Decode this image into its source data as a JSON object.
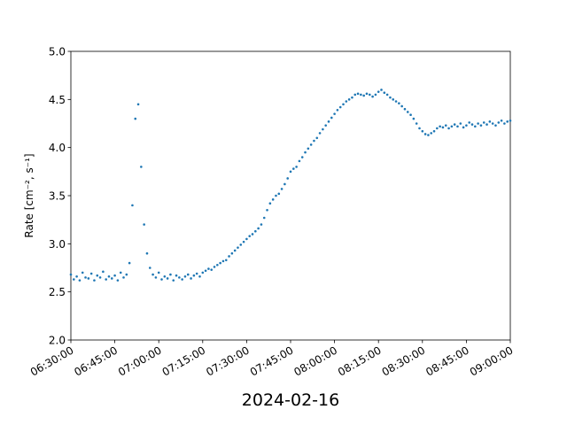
{
  "chart_data": {
    "type": "scatter",
    "x_label": "2024-02-16",
    "y_label": "Rate [cm⁻², s⁻¹]",
    "color": "#1f77b4",
    "xlim": [
      "06:30:00",
      "09:00:00"
    ],
    "xticks": [
      "06:30:00",
      "06:45:00",
      "07:00:00",
      "07:15:00",
      "07:30:00",
      "07:45:00",
      "08:00:00",
      "08:15:00",
      "08:30:00",
      "08:45:00",
      "09:00:00"
    ],
    "ylim": [
      2,
      5
    ],
    "yticks": [
      {
        "value": 2,
        "label": "2.0"
      },
      2.5,
      {
        "value": 3,
        "label": "3.0"
      },
      3.5,
      {
        "value": 4,
        "label": "4.0"
      },
      4.5,
      {
        "value": 5,
        "label": "5.0"
      }
    ],
    "x": [
      "06:30:00",
      "06:31:00",
      "06:32:00",
      "06:33:00",
      "06:34:00",
      "06:35:00",
      "06:36:00",
      "06:37:00",
      "06:38:00",
      "06:39:00",
      "06:40:00",
      "06:41:00",
      "06:42:00",
      "06:43:00",
      "06:44:00",
      "06:45:00",
      "06:46:00",
      "06:47:00",
      "06:48:00",
      "06:49:00",
      "06:50:00",
      "06:51:00",
      "06:52:00",
      "06:53:00",
      "06:54:00",
      "06:55:00",
      "06:56:00",
      "06:57:00",
      "06:58:00",
      "06:59:00",
      "07:00:00",
      "07:01:00",
      "07:02:00",
      "07:03:00",
      "07:04:00",
      "07:05:00",
      "07:06:00",
      "07:07:00",
      "07:08:00",
      "07:09:00",
      "07:10:00",
      "07:11:00",
      "07:12:00",
      "07:13:00",
      "07:14:00",
      "07:15:00",
      "07:16:00",
      "07:17:00",
      "07:18:00",
      "07:19:00",
      "07:20:00",
      "07:21:00",
      "07:22:00",
      "07:23:00",
      "07:24:00",
      "07:25:00",
      "07:26:00",
      "07:27:00",
      "07:28:00",
      "07:29:00",
      "07:30:00",
      "07:31:00",
      "07:32:00",
      "07:33:00",
      "07:34:00",
      "07:35:00",
      "07:36:00",
      "07:37:00",
      "07:38:00",
      "07:39:00",
      "07:40:00",
      "07:41:00",
      "07:42:00",
      "07:43:00",
      "07:44:00",
      "07:45:00",
      "07:46:00",
      "07:47:00",
      "07:48:00",
      "07:49:00",
      "07:50:00",
      "07:51:00",
      "07:52:00",
      "07:53:00",
      "07:54:00",
      "07:55:00",
      "07:56:00",
      "07:57:00",
      "07:58:00",
      "07:59:00",
      "08:00:00",
      "08:01:00",
      "08:02:00",
      "08:03:00",
      "08:04:00",
      "08:05:00",
      "08:06:00",
      "08:07:00",
      "08:08:00",
      "08:09:00",
      "08:10:00",
      "08:11:00",
      "08:12:00",
      "08:13:00",
      "08:14:00",
      "08:15:00",
      "08:16:00",
      "08:17:00",
      "08:18:00",
      "08:19:00",
      "08:20:00",
      "08:21:00",
      "08:22:00",
      "08:23:00",
      "08:24:00",
      "08:25:00",
      "08:26:00",
      "08:27:00",
      "08:28:00",
      "08:29:00",
      "08:30:00",
      "08:31:00",
      "08:32:00",
      "08:33:00",
      "08:34:00",
      "08:35:00",
      "08:36:00",
      "08:37:00",
      "08:38:00",
      "08:39:00",
      "08:40:00",
      "08:41:00",
      "08:42:00",
      "08:43:00",
      "08:44:00",
      "08:45:00",
      "08:46:00",
      "08:47:00",
      "08:48:00",
      "08:49:00",
      "08:50:00",
      "08:51:00",
      "08:52:00",
      "08:53:00",
      "08:54:00",
      "08:55:00",
      "08:56:00",
      "08:57:00",
      "08:58:00",
      "08:59:00",
      "09:00:00"
    ],
    "values": [
      2.68,
      2.63,
      2.66,
      2.62,
      2.7,
      2.65,
      2.64,
      2.69,
      2.62,
      2.67,
      2.65,
      2.71,
      2.63,
      2.66,
      2.64,
      2.67,
      2.62,
      2.7,
      2.65,
      2.68,
      2.8,
      3.4,
      4.3,
      4.45,
      3.8,
      3.2,
      2.9,
      2.75,
      2.68,
      2.65,
      2.7,
      2.63,
      2.66,
      2.64,
      2.68,
      2.62,
      2.67,
      2.65,
      2.63,
      2.66,
      2.68,
      2.64,
      2.67,
      2.69,
      2.66,
      2.7,
      2.72,
      2.74,
      2.73,
      2.76,
      2.78,
      2.8,
      2.82,
      2.83,
      2.87,
      2.9,
      2.93,
      2.96,
      2.99,
      3.02,
      3.05,
      3.08,
      3.1,
      3.13,
      3.16,
      3.2,
      3.27,
      3.35,
      3.42,
      3.46,
      3.5,
      3.52,
      3.57,
      3.62,
      3.68,
      3.75,
      3.78,
      3.8,
      3.86,
      3.9,
      3.95,
      3.99,
      4.03,
      4.07,
      4.1,
      4.15,
      4.19,
      4.23,
      4.27,
      4.31,
      4.35,
      4.39,
      4.42,
      4.45,
      4.48,
      4.5,
      4.52,
      4.55,
      4.56,
      4.55,
      4.54,
      4.56,
      4.55,
      4.53,
      4.55,
      4.58,
      4.6,
      4.57,
      4.55,
      4.52,
      4.5,
      4.48,
      4.46,
      4.43,
      4.4,
      4.37,
      4.34,
      4.3,
      4.25,
      4.2,
      4.17,
      4.14,
      4.13,
      4.15,
      4.17,
      4.2,
      4.22,
      4.21,
      4.23,
      4.2,
      4.22,
      4.24,
      4.22,
      4.25,
      4.21,
      4.23,
      4.26,
      4.24,
      4.22,
      4.25,
      4.23,
      4.26,
      4.24,
      4.27,
      4.25,
      4.23,
      4.26,
      4.28,
      4.25,
      4.27,
      4.28
    ]
  }
}
